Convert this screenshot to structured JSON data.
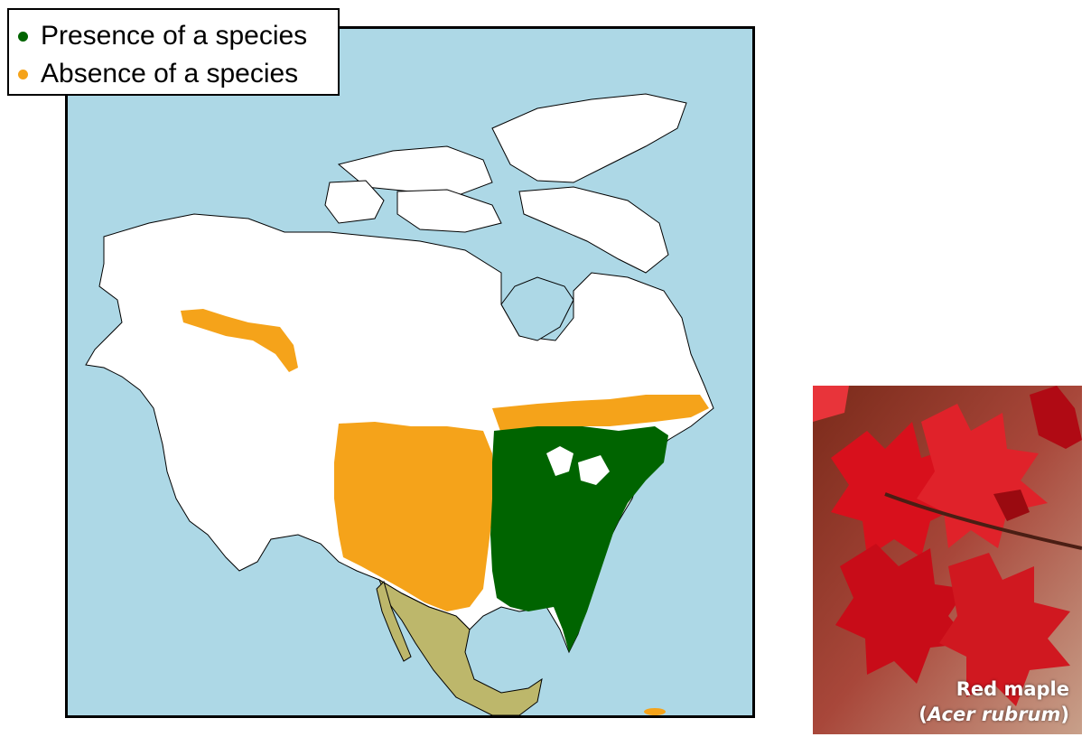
{
  "legend": {
    "items": [
      {
        "label": "Presence of a species",
        "color": "#006400"
      },
      {
        "label": "Absence of a species",
        "color": "#f5a31a"
      }
    ]
  },
  "map": {
    "ocean_color": "#add8e6",
    "land_color": "#ffffff",
    "mexico_color": "#bdb76b",
    "presence_color": "#006400",
    "absence_color": "#f5a31a"
  },
  "photo": {
    "caption_common": "Red maple",
    "caption_scientific": "Acer rubrum"
  }
}
